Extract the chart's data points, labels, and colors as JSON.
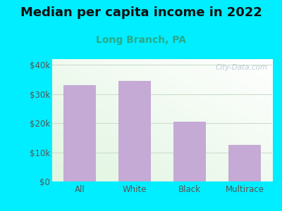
{
  "title": "Median per capita income in 2022",
  "subtitle": "Long Branch, PA",
  "categories": [
    "All",
    "White",
    "Black",
    "Multirace"
  ],
  "values": [
    33000,
    34500,
    20500,
    12500
  ],
  "bar_color": "#c4aad4",
  "background_color": "#00eeff",
  "title_fontsize": 13,
  "subtitle_fontsize": 10,
  "yticks": [
    0,
    10000,
    20000,
    30000,
    40000
  ],
  "ytick_labels": [
    "$0",
    "$10k",
    "$20k",
    "$30k",
    "$40k"
  ],
  "ylim": [
    0,
    42000
  ],
  "watermark": "City-Data.com",
  "subtitle_color": "#2aaa88",
  "tick_color": "#555555",
  "grid_color": "#ccddcc"
}
